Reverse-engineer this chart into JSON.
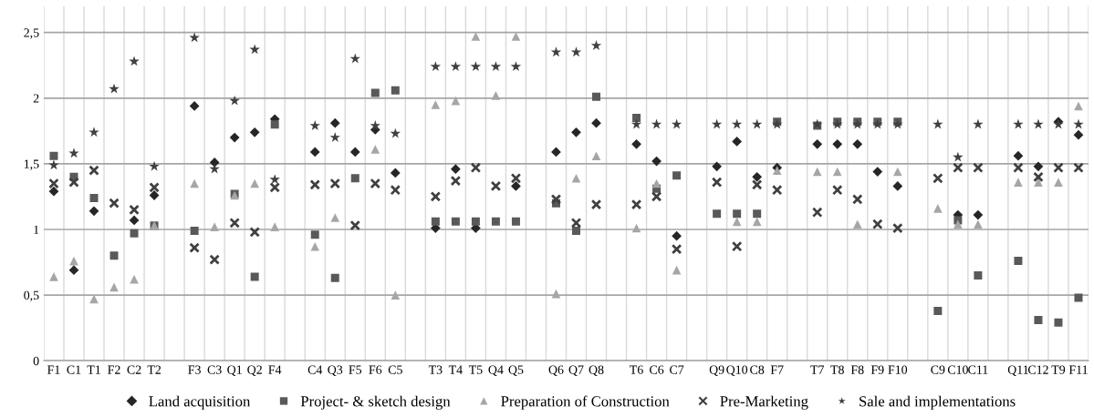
{
  "chart_data": {
    "type": "scatter",
    "categories": [
      "F1",
      "C1",
      "T1",
      "F2",
      "C2",
      "T2",
      null,
      "F3",
      "C3",
      "Q1",
      "Q2",
      "F4",
      null,
      "C4",
      "Q3",
      "F5",
      "F6",
      "C5",
      null,
      "T3",
      "T4",
      "T5",
      "Q4",
      "Q5",
      null,
      "Q6",
      "Q7",
      "Q8",
      null,
      "T6",
      "C6",
      "C7",
      null,
      "Q9",
      "Q10",
      "C8",
      "F7",
      null,
      "T7",
      "T8",
      "F8",
      "F9",
      "F10",
      null,
      "C9",
      "C10",
      "C11",
      null,
      "Q11",
      "C12",
      "T9",
      "F11"
    ],
    "series": [
      {
        "name": "Land acquisition",
        "color": "#262626",
        "marker": "diamond",
        "values": [
          1.29,
          0.69,
          1.14,
          null,
          1.07,
          1.26,
          null,
          1.94,
          1.51,
          1.7,
          1.74,
          1.84,
          null,
          1.59,
          1.81,
          1.59,
          1.76,
          1.43,
          null,
          1.01,
          1.46,
          1.01,
          null,
          1.33,
          null,
          1.59,
          1.74,
          1.81,
          null,
          1.65,
          1.52,
          0.95,
          null,
          1.48,
          1.67,
          1.4,
          1.47,
          null,
          1.65,
          1.65,
          1.65,
          1.44,
          1.33,
          null,
          null,
          1.11,
          1.11,
          null,
          1.56,
          1.48,
          1.82,
          1.72
        ]
      },
      {
        "name": "Project- & sketch design",
        "color": "#595959",
        "marker": "square",
        "values": [
          1.56,
          1.4,
          1.24,
          0.8,
          0.97,
          1.03,
          null,
          0.99,
          null,
          1.27,
          0.64,
          1.8,
          null,
          0.96,
          0.63,
          1.39,
          2.04,
          2.06,
          null,
          1.06,
          1.06,
          1.06,
          1.06,
          1.06,
          null,
          1.2,
          0.99,
          2.01,
          null,
          1.85,
          1.31,
          1.41,
          null,
          1.12,
          1.12,
          1.12,
          1.82,
          null,
          1.79,
          1.82,
          1.82,
          1.82,
          1.82,
          null,
          0.38,
          1.07,
          0.65,
          null,
          0.76,
          0.31,
          0.29,
          0.48
        ]
      },
      {
        "name": "Preparation of Construction",
        "color": "#a6a6a6",
        "marker": "triangle",
        "values": [
          0.64,
          0.76,
          0.47,
          0.56,
          0.62,
          1.03,
          null,
          1.35,
          1.02,
          1.26,
          1.35,
          1.02,
          null,
          0.87,
          1.09,
          null,
          1.61,
          0.5,
          null,
          1.95,
          1.98,
          2.47,
          2.02,
          2.47,
          null,
          0.51,
          1.39,
          1.56,
          null,
          1.01,
          1.35,
          0.69,
          null,
          null,
          1.06,
          1.06,
          1.45,
          null,
          1.44,
          1.44,
          1.04,
          null,
          1.44,
          null,
          1.16,
          1.04,
          1.04,
          null,
          1.36,
          1.36,
          1.36,
          1.94
        ]
      },
      {
        "name": "Pre-Marketing",
        "color": "#404040",
        "marker": "cross",
        "values": [
          1.35,
          1.36,
          1.45,
          1.2,
          1.15,
          1.32,
          null,
          0.86,
          0.77,
          1.05,
          0.98,
          1.32,
          null,
          1.34,
          1.35,
          1.03,
          1.35,
          1.3,
          null,
          1.25,
          1.37,
          1.47,
          1.33,
          1.39,
          null,
          1.23,
          1.05,
          1.19,
          null,
          1.19,
          1.25,
          0.85,
          null,
          1.36,
          0.87,
          1.34,
          1.3,
          null,
          1.13,
          1.3,
          1.23,
          1.04,
          1.01,
          null,
          1.39,
          1.47,
          1.47,
          null,
          1.47,
          1.4,
          1.47,
          1.47
        ]
      },
      {
        "name": "Sale and implementations",
        "color": "#404040",
        "marker": "star",
        "values": [
          1.49,
          1.58,
          1.74,
          2.07,
          2.28,
          1.48,
          null,
          2.46,
          1.46,
          1.98,
          2.37,
          1.38,
          null,
          1.79,
          1.7,
          2.3,
          1.79,
          1.73,
          null,
          2.24,
          2.24,
          2.24,
          2.24,
          2.24,
          null,
          2.35,
          2.35,
          2.4,
          null,
          1.8,
          1.8,
          1.8,
          null,
          1.8,
          1.8,
          1.8,
          1.8,
          null,
          1.8,
          1.8,
          1.8,
          1.8,
          1.8,
          null,
          1.8,
          1.55,
          1.8,
          null,
          1.8,
          1.8,
          1.8,
          1.8
        ]
      }
    ],
    "ylim": [
      0,
      2.7
    ],
    "yticks": [
      0,
      {
        "value": 0.5,
        "label": "0,5"
      },
      1,
      {
        "value": 1.5,
        "label": "1,5"
      },
      2,
      {
        "value": 2.5,
        "label": "2,5"
      }
    ],
    "grid": true,
    "legend": "bottom"
  }
}
